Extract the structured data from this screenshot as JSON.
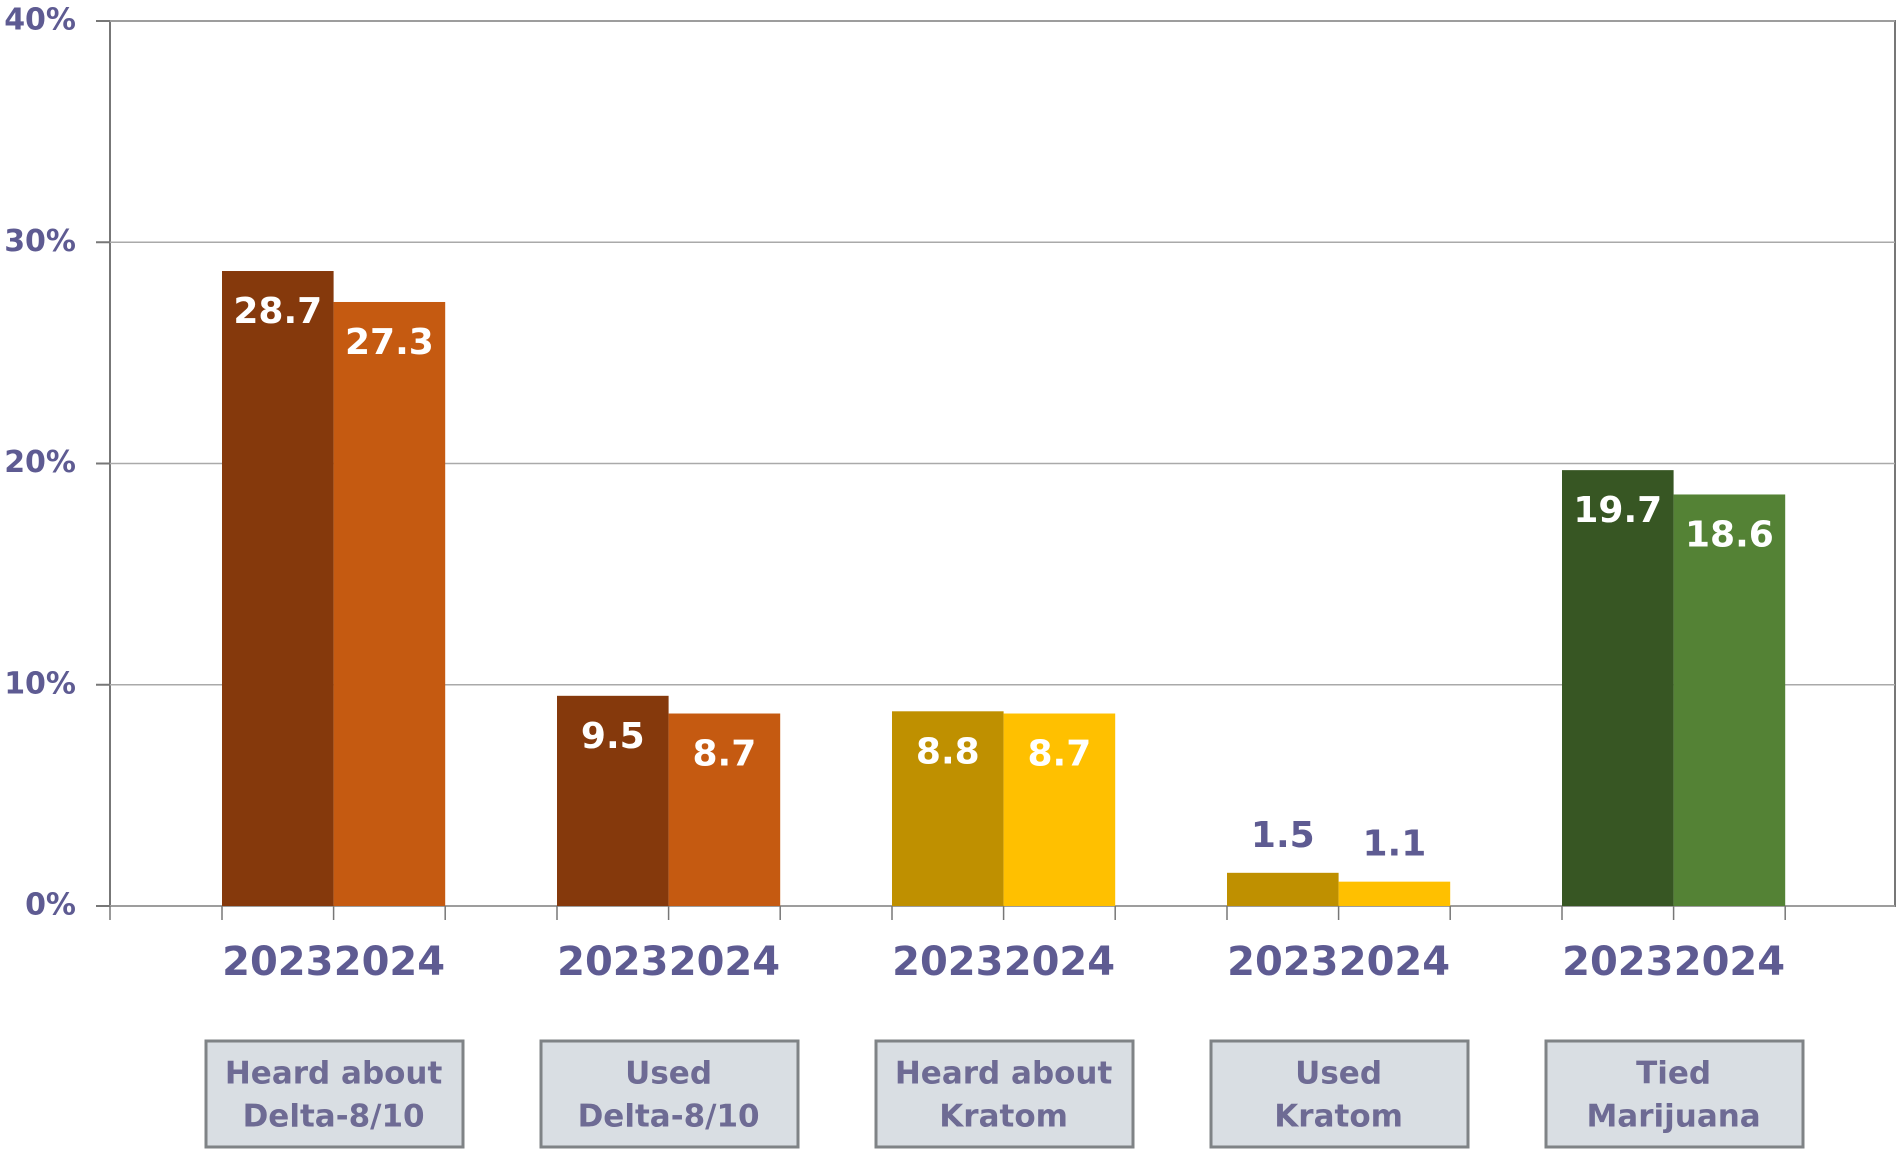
{
  "chart_data": {
    "type": "bar",
    "ylim": [
      0,
      40
    ],
    "yticks": [
      {
        "value": 0,
        "label": "0%"
      },
      {
        "value": 10,
        "label": "10%"
      },
      {
        "value": 20,
        "label": "20%"
      },
      {
        "value": 30,
        "label": "30%"
      },
      {
        "value": 40,
        "label": "40%"
      }
    ],
    "grid": true,
    "groups": [
      {
        "label": [
          "Heard about",
          "Delta-8/10"
        ],
        "categories": [
          "2023",
          "2024"
        ],
        "values": [
          28.7,
          27.3
        ],
        "colors": [
          "#85390c",
          "#c55a11"
        ]
      },
      {
        "label": [
          "Used",
          "Delta-8/10"
        ],
        "categories": [
          "2023",
          "2024"
        ],
        "values": [
          9.5,
          8.7
        ],
        "colors": [
          "#85390c",
          "#c55a11"
        ]
      },
      {
        "label": [
          "Heard about",
          "Kratom"
        ],
        "categories": [
          "2023",
          "2024"
        ],
        "values": [
          8.8,
          8.7
        ],
        "colors": [
          "#bf9000",
          "#ffc000"
        ]
      },
      {
        "label": [
          "Used",
          "Kratom"
        ],
        "categories": [
          "2023",
          "2024"
        ],
        "values": [
          1.5,
          1.1
        ],
        "colors": [
          "#bf9000",
          "#ffc000"
        ]
      },
      {
        "label": [
          "Tied",
          "Marijuana"
        ],
        "categories": [
          "2023",
          "2024"
        ],
        "values": [
          19.7,
          18.6
        ],
        "colors": [
          "#375623",
          "#548235"
        ]
      }
    ]
  }
}
